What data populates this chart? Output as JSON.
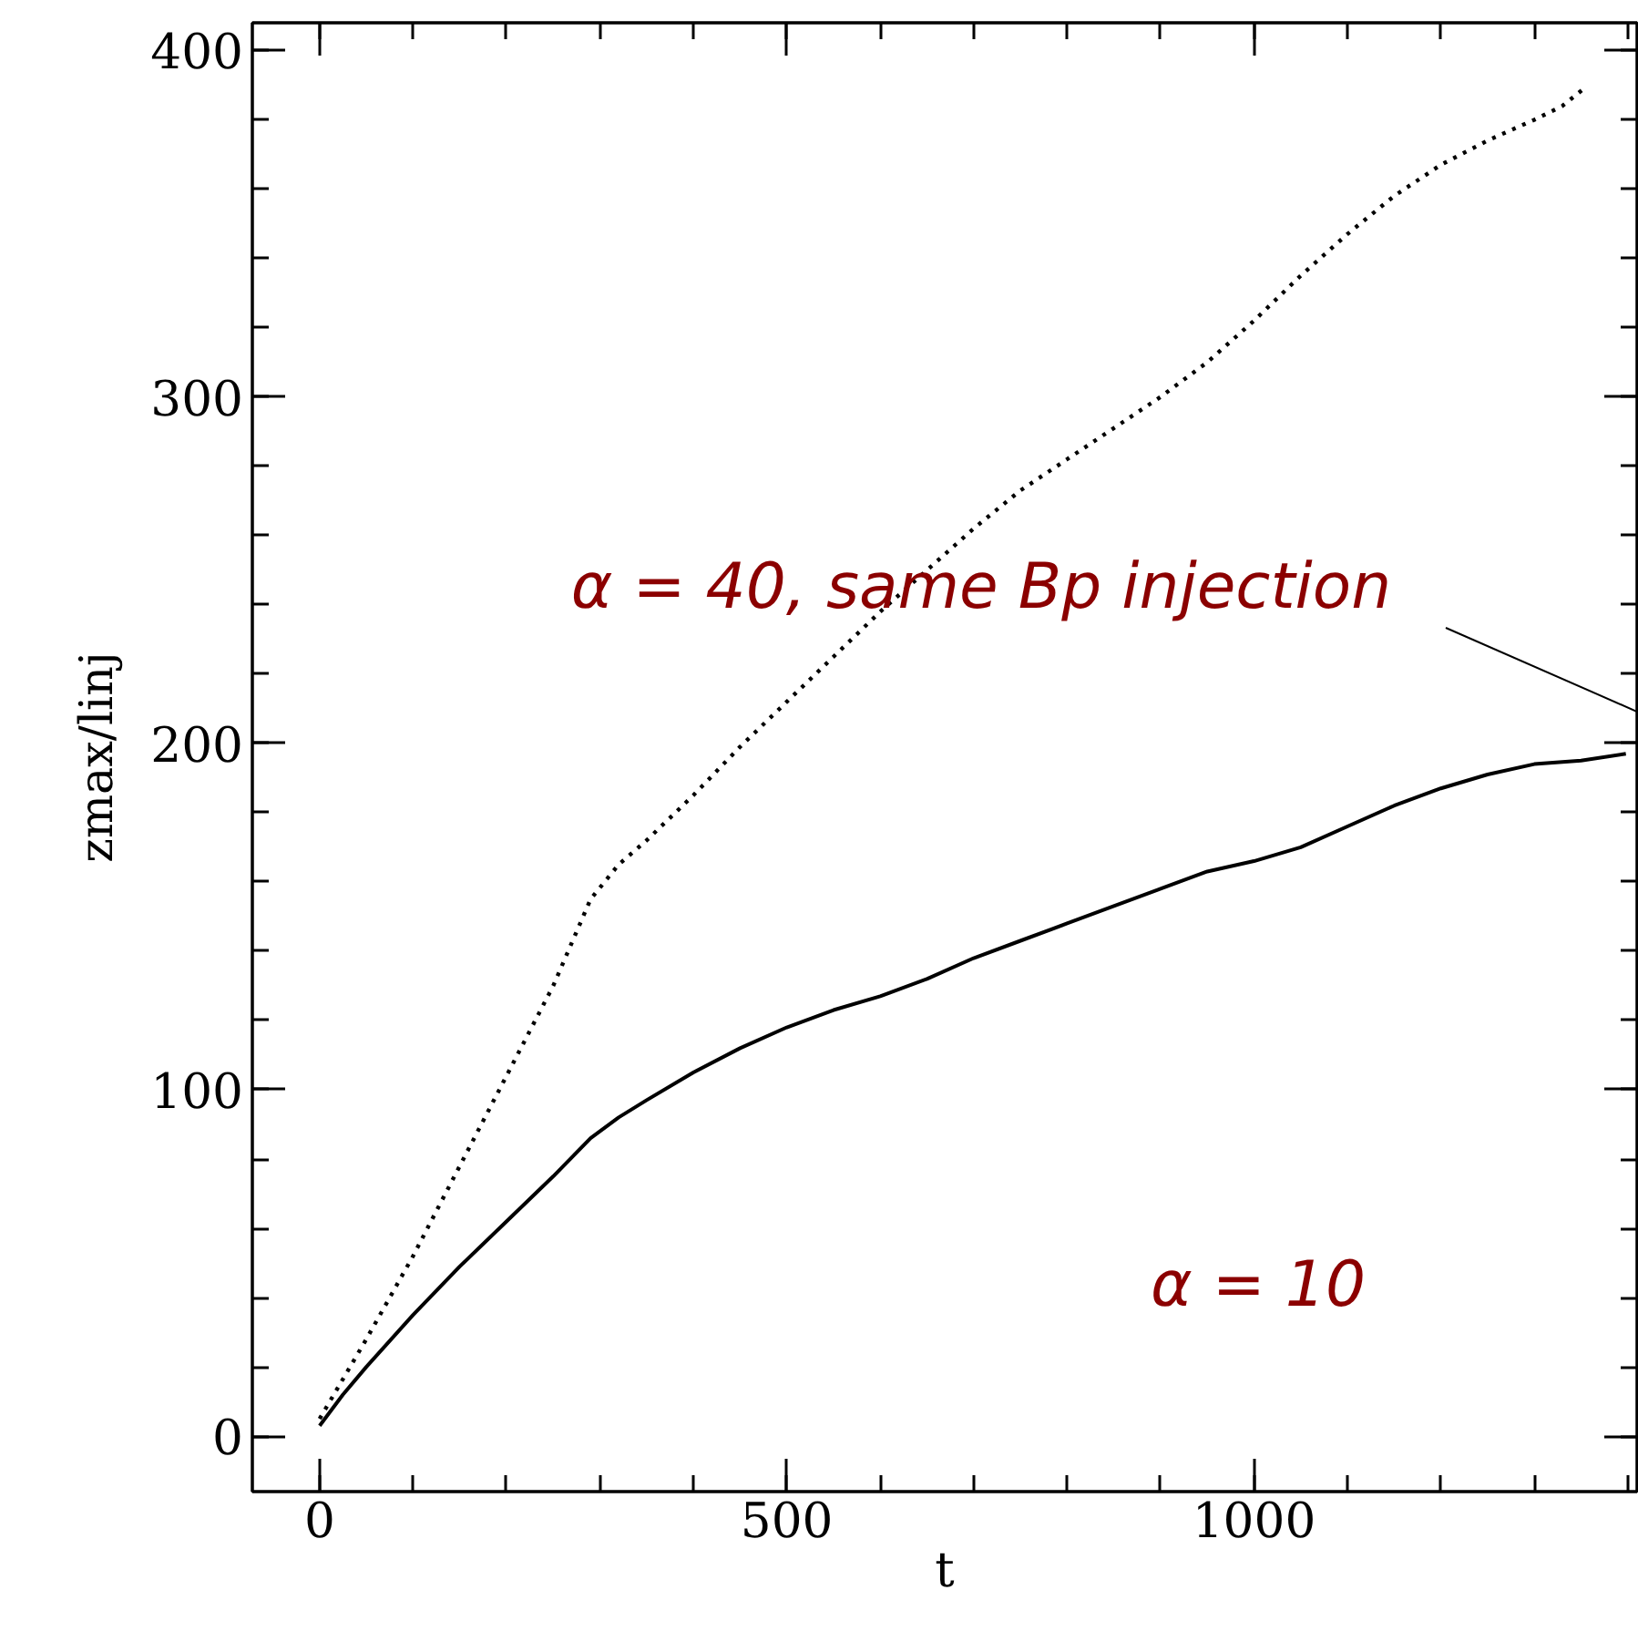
{
  "chart_data": {
    "type": "line",
    "xlabel": "t",
    "ylabel": "zmax/linj",
    "xlim": [
      -72,
      1410
    ],
    "ylim": [
      -16,
      408
    ],
    "xticks": [
      0,
      500,
      1000
    ],
    "yticks": [
      0,
      100,
      200,
      300,
      400
    ],
    "grid": false,
    "series": [
      {
        "color": "#000000",
        "line_style": "solid",
        "x": [
          0,
          25,
          50,
          100,
          150,
          200,
          250,
          290,
          320,
          350,
          400,
          450,
          500,
          550,
          600,
          650,
          700,
          750,
          800,
          850,
          900,
          950,
          1000,
          1050,
          1100,
          1150,
          1200,
          1250,
          1300,
          1350,
          1398
        ],
        "values": [
          3,
          12,
          20,
          35,
          49,
          62,
          75,
          86,
          92,
          97,
          105,
          112,
          118,
          123,
          127,
          132,
          138,
          143,
          148,
          153,
          158,
          163,
          166,
          170,
          176,
          182,
          187,
          191,
          194,
          195,
          197
        ]
      },
      {
        "color": "#000000",
        "line_style": "dotted",
        "x": [
          0,
          50,
          100,
          150,
          200,
          250,
          290,
          320,
          350,
          400,
          450,
          500,
          550,
          600,
          650,
          700,
          750,
          800,
          850,
          900,
          950,
          1000,
          1050,
          1100,
          1150,
          1200,
          1250,
          1300,
          1330,
          1353
        ],
        "values": [
          5,
          28,
          52,
          78,
          104,
          130,
          155,
          165,
          172,
          185,
          199,
          212,
          225,
          238,
          250,
          262,
          273,
          282,
          291,
          300,
          310,
          322,
          335,
          347,
          358,
          367,
          374,
          380,
          384,
          389
        ]
      }
    ],
    "annotations": [
      "α = 40, same Bp injection",
      "α = 10"
    ]
  }
}
